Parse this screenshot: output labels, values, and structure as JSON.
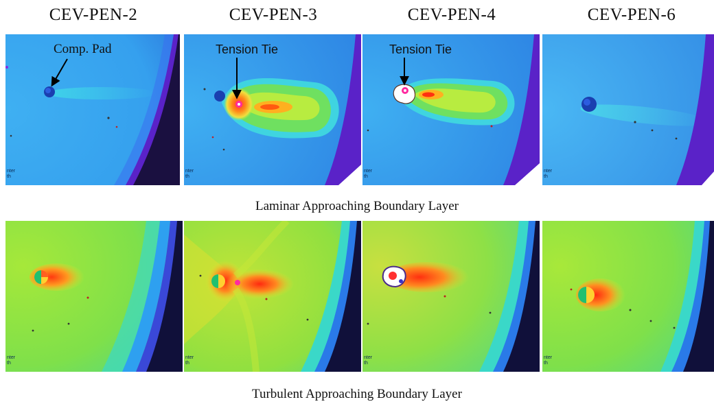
{
  "column_titles": [
    "CEV-PEN-2",
    "CEV-PEN-3",
    "CEV-PEN-4",
    "CEV-PEN-6"
  ],
  "row_captions": {
    "laminar": "Laminar Approaching Boundary Layer",
    "turbulent": "Turbulent Approaching Boundary Layer"
  },
  "callouts": {
    "comp_pad": "Comp. Pad",
    "tension_tie_3": "Tension Tie",
    "tension_tie_4": "Tension Tie"
  },
  "panel_fragments": {
    "line1": "nter",
    "line2": "th"
  },
  "colors": {
    "laminar_base": "#3aa0f0",
    "turbulent_base": "#7fe04a",
    "hot": "#ff2a10",
    "edge_purple": "#5a22c8"
  }
}
